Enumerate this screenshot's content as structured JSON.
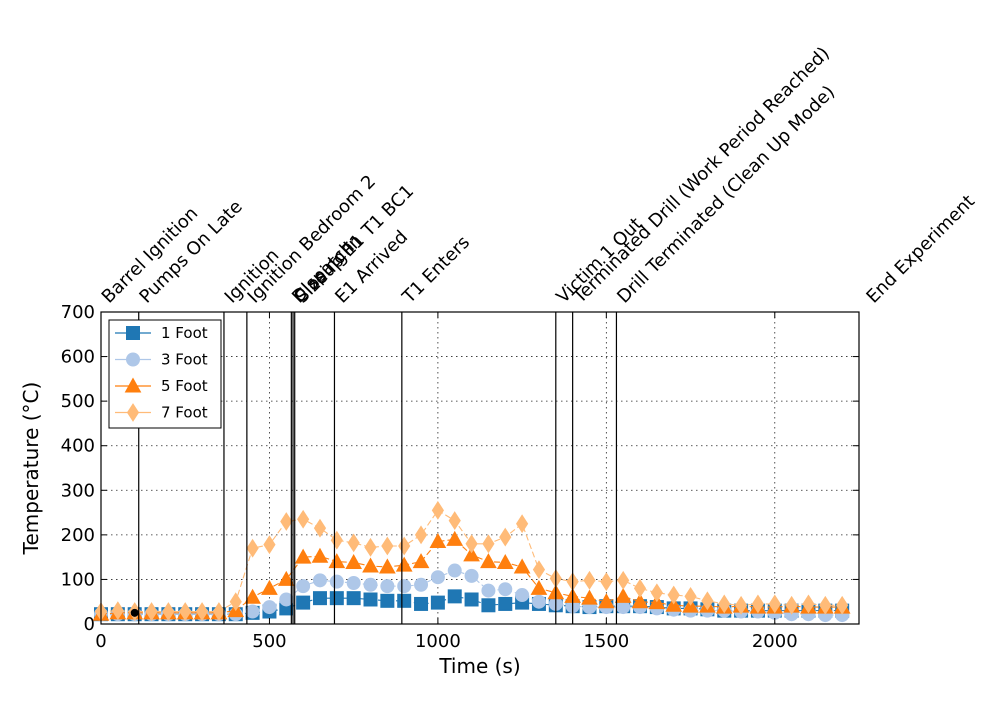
{
  "chart_data": {
    "type": "line",
    "title": "",
    "xlabel": "Time (s)",
    "ylabel": "Temperature (°C)",
    "xlim": [
      0,
      2250
    ],
    "ylim": [
      0,
      700
    ],
    "xticks": [
      0,
      500,
      1000,
      1500,
      2000
    ],
    "yticks": [
      0,
      100,
      200,
      300,
      400,
      500,
      600,
      700
    ],
    "grid": true,
    "legend_position": "top-left",
    "x": [
      0,
      50,
      100,
      150,
      200,
      250,
      300,
      350,
      400,
      450,
      500,
      550,
      600,
      650,
      700,
      750,
      800,
      850,
      900,
      950,
      1000,
      1050,
      1100,
      1150,
      1200,
      1250,
      1300,
      1350,
      1400,
      1450,
      1500,
      1550,
      1600,
      1650,
      1700,
      1750,
      1800,
      1850,
      1900,
      1950,
      2000,
      2050,
      2100,
      2150,
      2200
    ],
    "series": [
      {
        "name": "1 Foot",
        "color": "#1f77b4",
        "marker": "square",
        "values": [
          22,
          22,
          22,
          22,
          22,
          22,
          22,
          22,
          22,
          25,
          28,
          35,
          48,
          58,
          58,
          58,
          55,
          52,
          52,
          45,
          48,
          62,
          55,
          42,
          45,
          48,
          45,
          42,
          40,
          38,
          40,
          40,
          40,
          38,
          35,
          35,
          33,
          30,
          30,
          30,
          30,
          30,
          30,
          30,
          30
        ]
      },
      {
        "name": "3 Foot",
        "color": "#aec7e8",
        "marker": "circle",
        "values": [
          22,
          22,
          22,
          22,
          22,
          22,
          22,
          22,
          22,
          28,
          38,
          55,
          85,
          98,
          95,
          92,
          88,
          85,
          85,
          88,
          105,
          120,
          108,
          75,
          78,
          65,
          50,
          45,
          40,
          38,
          38,
          38,
          38,
          35,
          32,
          30,
          30,
          30,
          28,
          28,
          25,
          22,
          22,
          20,
          20
        ]
      },
      {
        "name": "5 Foot",
        "color": "#ff7f0e",
        "marker": "triangle",
        "values": [
          22,
          25,
          25,
          25,
          25,
          25,
          25,
          25,
          30,
          60,
          80,
          100,
          150,
          152,
          140,
          138,
          130,
          128,
          132,
          140,
          185,
          190,
          155,
          140,
          138,
          128,
          80,
          70,
          62,
          58,
          50,
          62,
          50,
          48,
          42,
          40,
          40,
          38,
          40,
          38,
          38,
          40,
          38,
          38,
          38
        ]
      },
      {
        "name": "7 Foot",
        "color": "#ffbb78",
        "marker": "diamond",
        "values": [
          28,
          30,
          28,
          28,
          28,
          28,
          28,
          28,
          50,
          170,
          178,
          230,
          235,
          215,
          188,
          182,
          172,
          175,
          175,
          200,
          255,
          232,
          180,
          180,
          195,
          225,
          122,
          102,
          95,
          98,
          95,
          98,
          80,
          70,
          65,
          62,
          52,
          45,
          42,
          45,
          45,
          42,
          45,
          42,
          42
        ]
      }
    ],
    "extra_marker": {
      "x": 100,
      "y": 25,
      "color": "#000000"
    },
    "events": [
      {
        "label": "Barrel Ignition",
        "x": 0
      },
      {
        "label": "Pumps On Late",
        "x": 112
      },
      {
        "label": "Ignition",
        "x": 365
      },
      {
        "label": "Ignition Bedroom 2",
        "x": 433
      },
      {
        "label": "Dispatch",
        "x": 565
      },
      {
        "label": "Closing in",
        "x": 570
      },
      {
        "label": "Sizeup E1 T1 BC1",
        "x": 575
      },
      {
        "label": "E1 Arrived",
        "x": 693
      },
      {
        "label": "T1 Enters",
        "x": 893
      },
      {
        "label": "Victim 1 Out",
        "x": 1350
      },
      {
        "label": "Terminated Drill (Work Period Reached)",
        "x": 1400
      },
      {
        "label": "Drill Terminated (Clean Up Mode)",
        "x": 1530
      },
      {
        "label": "End Experiment",
        "x": 2270
      }
    ]
  }
}
